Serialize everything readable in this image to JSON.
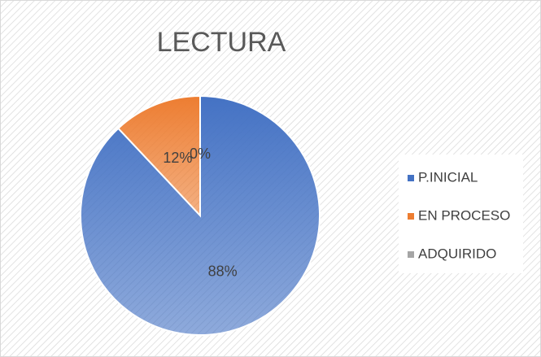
{
  "chart_data": {
    "type": "pie",
    "title": "LECTURA",
    "categories": [
      "P.INICIAL",
      "EN PROCESO",
      "ADQUIRIDO"
    ],
    "values": [
      88,
      12,
      0
    ],
    "value_labels": [
      "88%",
      "12%",
      "0%"
    ],
    "colors": [
      "#4472c4",
      "#ed7d31",
      "#a5a5a5"
    ],
    "legend": "right"
  }
}
